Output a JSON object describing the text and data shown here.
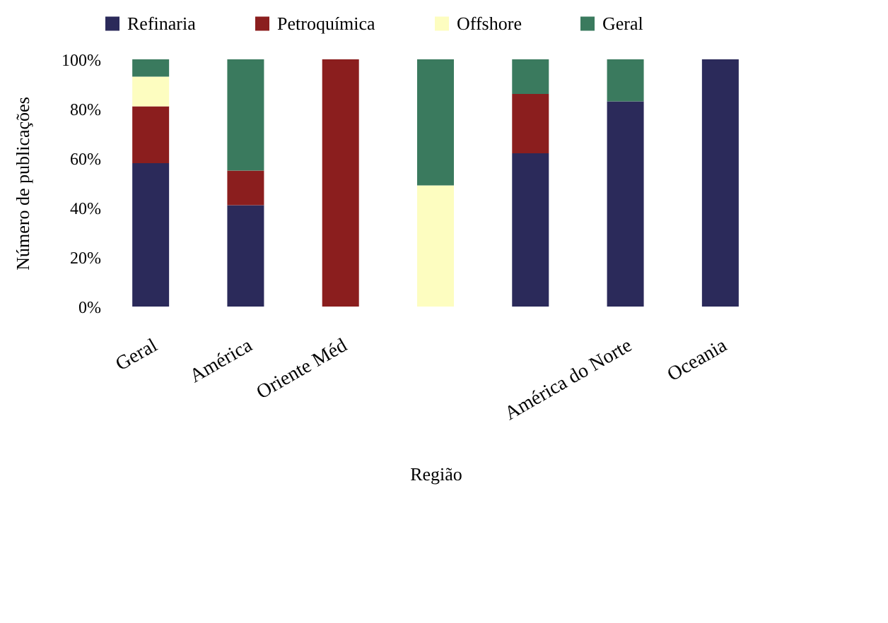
{
  "chart_data": {
    "type": "bar",
    "stacked": true,
    "xlabel": "Região",
    "ylabel": "Número de publicações",
    "categories": [
      "Geral",
      "América",
      "Oriente Méd",
      null,
      null,
      "América do Norte",
      "Oceania"
    ],
    "series": [
      {
        "name": "Refinaria",
        "color": "#2b2a5a",
        "values": [
          58,
          41,
          0,
          0,
          62,
          83,
          100
        ]
      },
      {
        "name": "Petroquímica",
        "color": "#8b1e1e",
        "values": [
          23,
          14,
          100,
          0,
          24,
          0,
          0
        ]
      },
      {
        "name": "Offshore",
        "color": "#fdfdc0",
        "values": [
          12,
          0,
          0,
          49,
          0,
          0,
          0
        ]
      },
      {
        "name": "Geral",
        "color": "#3a7a5e",
        "values": [
          7,
          45,
          0,
          51,
          14,
          17,
          0
        ]
      }
    ],
    "ylim": [
      0,
      100
    ],
    "yticks": [
      {
        "value": 0,
        "label": "0%"
      },
      {
        "value": 20,
        "label": "20%"
      },
      {
        "value": 40,
        "label": "40%"
      },
      {
        "value": 60,
        "label": "60%"
      },
      {
        "value": 80,
        "label": "80%"
      },
      {
        "value": 100,
        "label": "100%"
      }
    ],
    "grid": false,
    "legend": "top"
  }
}
